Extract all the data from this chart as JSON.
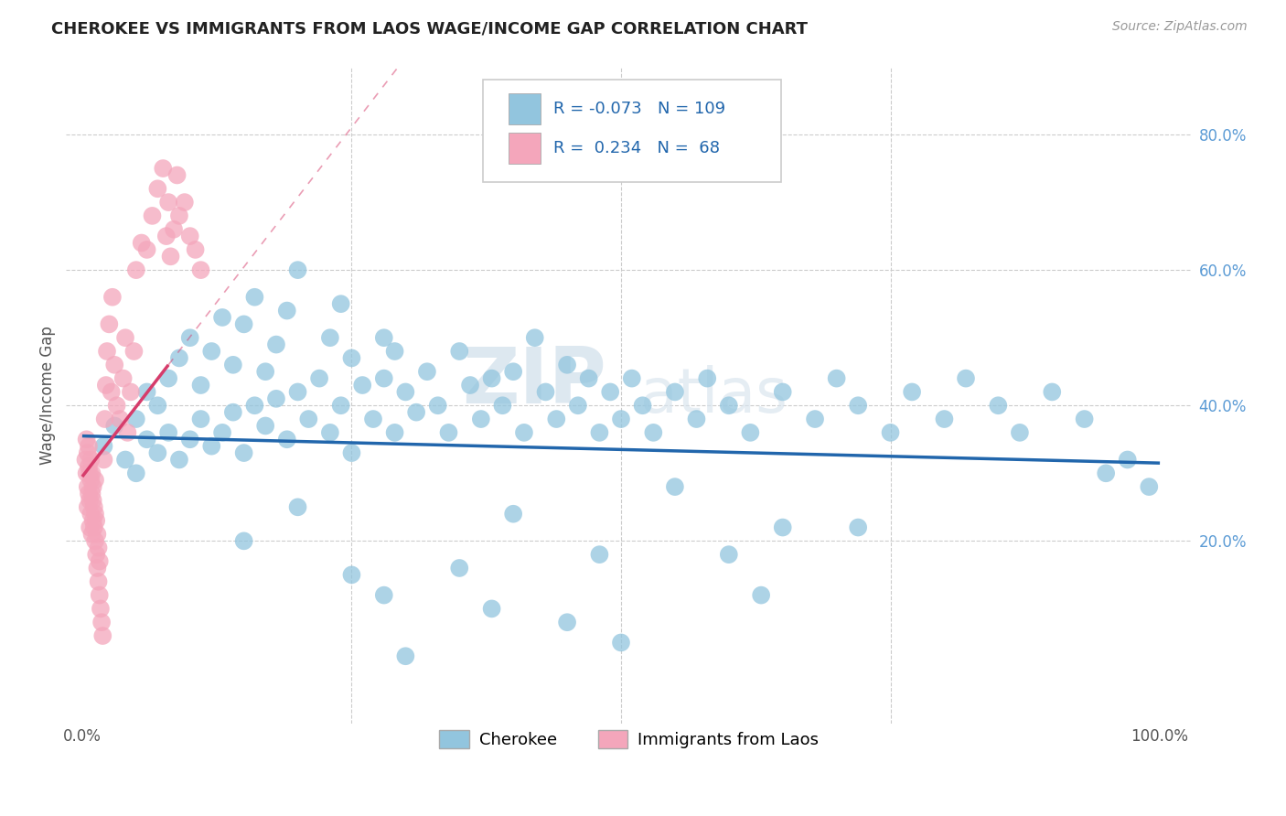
{
  "title": "CHEROKEE VS IMMIGRANTS FROM LAOS WAGE/INCOME GAP CORRELATION CHART",
  "source": "Source: ZipAtlas.com",
  "ylabel": "Wage/Income Gap",
  "legend_labels": [
    "Cherokee",
    "Immigrants from Laos"
  ],
  "ytick_labels": [
    "20.0%",
    "40.0%",
    "60.0%",
    "80.0%"
  ],
  "ytick_vals": [
    0.2,
    0.4,
    0.6,
    0.8
  ],
  "color_blue": "#92c5de",
  "color_blue_line": "#2166ac",
  "color_pink": "#f4a6bb",
  "color_pink_line": "#d63c6b",
  "watermark_zip": "ZIP",
  "watermark_atlas": "atlas",
  "xlim": [
    0.0,
    1.0
  ],
  "ylim": [
    -0.05,
    0.88
  ],
  "blue_x": [
    0.02,
    0.03,
    0.04,
    0.05,
    0.05,
    0.06,
    0.06,
    0.07,
    0.07,
    0.08,
    0.08,
    0.09,
    0.09,
    0.1,
    0.1,
    0.11,
    0.11,
    0.12,
    0.12,
    0.13,
    0.13,
    0.14,
    0.14,
    0.15,
    0.15,
    0.16,
    0.16,
    0.17,
    0.17,
    0.18,
    0.18,
    0.19,
    0.19,
    0.2,
    0.2,
    0.21,
    0.22,
    0.23,
    0.23,
    0.24,
    0.24,
    0.25,
    0.25,
    0.26,
    0.27,
    0.28,
    0.28,
    0.29,
    0.29,
    0.3,
    0.31,
    0.32,
    0.33,
    0.34,
    0.35,
    0.36,
    0.37,
    0.38,
    0.39,
    0.4,
    0.41,
    0.42,
    0.43,
    0.44,
    0.45,
    0.46,
    0.47,
    0.48,
    0.49,
    0.5,
    0.51,
    0.52,
    0.53,
    0.55,
    0.57,
    0.58,
    0.6,
    0.62,
    0.65,
    0.68,
    0.7,
    0.72,
    0.75,
    0.77,
    0.8,
    0.82,
    0.85,
    0.87,
    0.9,
    0.93,
    0.95,
    0.97,
    0.99,
    0.25,
    0.38,
    0.5,
    0.63,
    0.72,
    0.6,
    0.45,
    0.3,
    0.2,
    0.15,
    0.55,
    0.4,
    0.48,
    0.65,
    0.35,
    0.28
  ],
  "blue_y": [
    0.34,
    0.37,
    0.32,
    0.38,
    0.3,
    0.35,
    0.42,
    0.33,
    0.4,
    0.36,
    0.44,
    0.32,
    0.47,
    0.35,
    0.5,
    0.38,
    0.43,
    0.34,
    0.48,
    0.36,
    0.53,
    0.39,
    0.46,
    0.33,
    0.52,
    0.4,
    0.56,
    0.37,
    0.45,
    0.41,
    0.49,
    0.35,
    0.54,
    0.42,
    0.6,
    0.38,
    0.44,
    0.36,
    0.5,
    0.4,
    0.55,
    0.33,
    0.47,
    0.43,
    0.38,
    0.44,
    0.5,
    0.36,
    0.48,
    0.42,
    0.39,
    0.45,
    0.4,
    0.36,
    0.48,
    0.43,
    0.38,
    0.44,
    0.4,
    0.45,
    0.36,
    0.5,
    0.42,
    0.38,
    0.46,
    0.4,
    0.44,
    0.36,
    0.42,
    0.38,
    0.44,
    0.4,
    0.36,
    0.42,
    0.38,
    0.44,
    0.4,
    0.36,
    0.42,
    0.38,
    0.44,
    0.4,
    0.36,
    0.42,
    0.38,
    0.44,
    0.4,
    0.36,
    0.42,
    0.38,
    0.3,
    0.32,
    0.28,
    0.15,
    0.1,
    0.05,
    0.12,
    0.22,
    0.18,
    0.08,
    0.03,
    0.25,
    0.2,
    0.28,
    0.24,
    0.18,
    0.22,
    0.16,
    0.12
  ],
  "pink_x": [
    0.003,
    0.004,
    0.004,
    0.005,
    0.005,
    0.005,
    0.006,
    0.006,
    0.006,
    0.007,
    0.007,
    0.007,
    0.008,
    0.008,
    0.008,
    0.009,
    0.009,
    0.009,
    0.01,
    0.01,
    0.01,
    0.011,
    0.011,
    0.012,
    0.012,
    0.012,
    0.013,
    0.013,
    0.014,
    0.014,
    0.015,
    0.015,
    0.016,
    0.016,
    0.017,
    0.018,
    0.019,
    0.02,
    0.021,
    0.022,
    0.023,
    0.025,
    0.027,
    0.028,
    0.03,
    0.032,
    0.035,
    0.038,
    0.04,
    0.042,
    0.045,
    0.048,
    0.05,
    0.055,
    0.06,
    0.065,
    0.07,
    0.075,
    0.078,
    0.08,
    0.082,
    0.085,
    0.088,
    0.09,
    0.095,
    0.1,
    0.105,
    0.11
  ],
  "pink_y": [
    0.32,
    0.3,
    0.35,
    0.28,
    0.33,
    0.25,
    0.31,
    0.27,
    0.34,
    0.26,
    0.3,
    0.22,
    0.29,
    0.24,
    0.32,
    0.27,
    0.21,
    0.3,
    0.26,
    0.23,
    0.28,
    0.22,
    0.25,
    0.2,
    0.24,
    0.29,
    0.18,
    0.23,
    0.16,
    0.21,
    0.14,
    0.19,
    0.12,
    0.17,
    0.1,
    0.08,
    0.06,
    0.32,
    0.38,
    0.43,
    0.48,
    0.52,
    0.42,
    0.56,
    0.46,
    0.4,
    0.38,
    0.44,
    0.5,
    0.36,
    0.42,
    0.48,
    0.6,
    0.64,
    0.63,
    0.68,
    0.72,
    0.75,
    0.65,
    0.7,
    0.62,
    0.66,
    0.74,
    0.68,
    0.7,
    0.65,
    0.63,
    0.6
  ]
}
